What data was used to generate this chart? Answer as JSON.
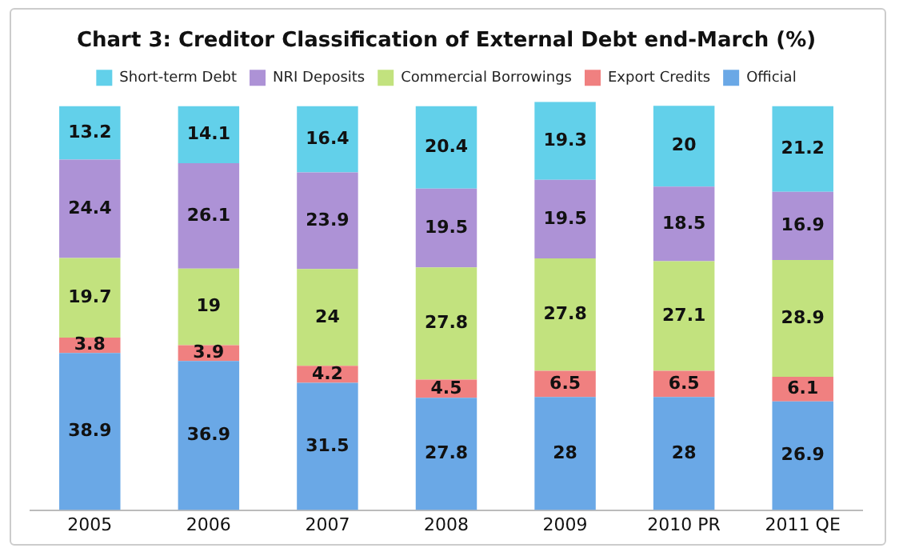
{
  "chart_data": {
    "type": "bar",
    "stacked": true,
    "title": "Chart 3: Creditor Classification of External Debt end-March (%)",
    "categories": [
      "2005",
      "2006",
      "2007",
      "2008",
      "2009",
      "2010 PR",
      "2011 QE"
    ],
    "series": [
      {
        "name": "Official",
        "color": "#6aa8e6",
        "values": [
          38.9,
          36.9,
          31.5,
          27.8,
          28,
          28,
          26.9
        ]
      },
      {
        "name": "Export Credits",
        "color": "#f08080",
        "values": [
          3.8,
          3.9,
          4.2,
          4.5,
          6.5,
          6.5,
          6.1
        ]
      },
      {
        "name": "Commercial Borrowings",
        "color": "#c2e27e",
        "values": [
          19.7,
          19,
          24,
          27.8,
          27.8,
          27.1,
          28.9
        ]
      },
      {
        "name": "NRI Deposits",
        "color": "#ad92d6",
        "values": [
          24.4,
          26.1,
          23.9,
          19.5,
          19.5,
          18.5,
          16.9
        ]
      },
      {
        "name": "Short-term Debt",
        "color": "#62d0ea",
        "values": [
          13.2,
          14.1,
          16.4,
          20.4,
          19.3,
          20,
          21.2
        ]
      }
    ],
    "data_labels": true,
    "legend": "top",
    "grid": false
  }
}
